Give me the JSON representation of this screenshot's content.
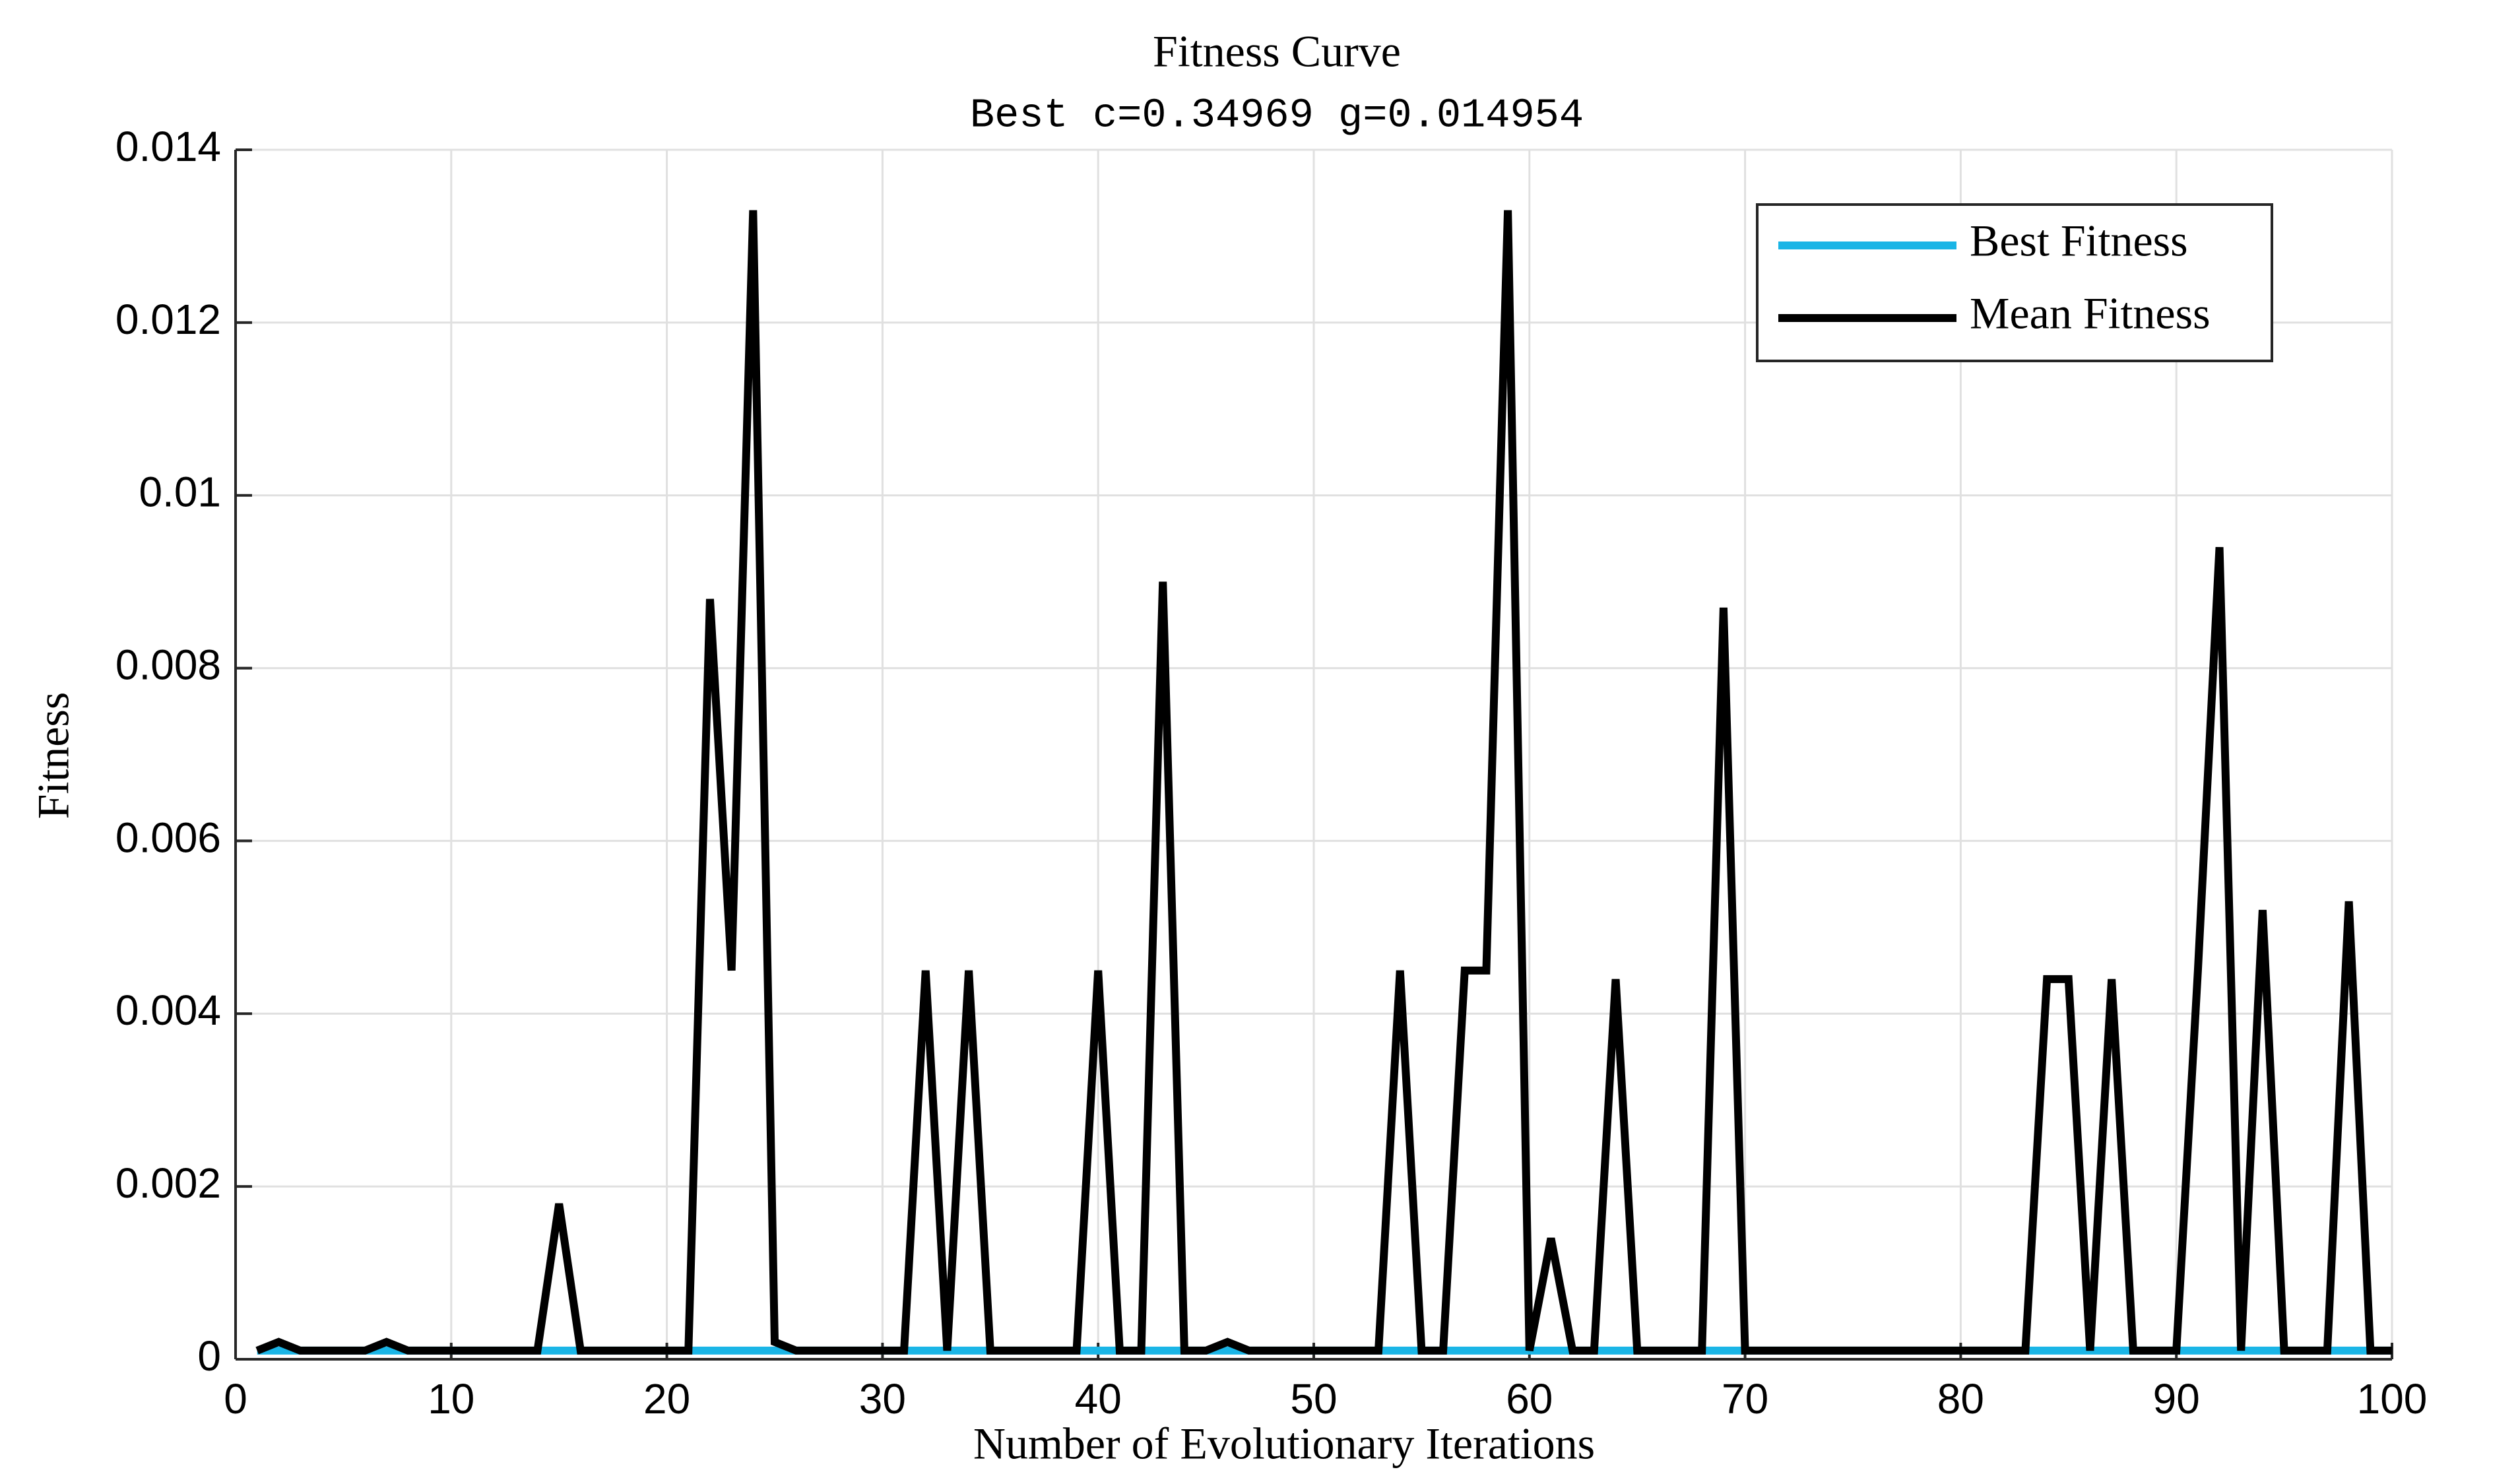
{
  "chart_data": {
    "type": "line",
    "title": "Fitness Curve",
    "subtitle": "Best c=0.34969 g=0.014954",
    "x_label": "Number of Evolutionary Iterations",
    "y_label": "Fitness",
    "x": [
      1,
      2,
      3,
      4,
      5,
      6,
      7,
      8,
      9,
      10,
      11,
      12,
      13,
      14,
      15,
      16,
      17,
      18,
      19,
      20,
      21,
      22,
      23,
      24,
      25,
      26,
      27,
      28,
      29,
      30,
      31,
      32,
      33,
      34,
      35,
      36,
      37,
      38,
      39,
      40,
      41,
      42,
      43,
      44,
      45,
      46,
      47,
      48,
      49,
      50,
      51,
      52,
      53,
      54,
      55,
      56,
      57,
      58,
      59,
      60,
      61,
      62,
      63,
      64,
      65,
      66,
      67,
      68,
      69,
      70,
      71,
      72,
      73,
      74,
      75,
      76,
      77,
      78,
      79,
      80,
      81,
      82,
      83,
      84,
      85,
      86,
      87,
      88,
      89,
      90,
      91,
      92,
      93,
      94,
      95,
      96,
      97,
      98,
      99,
      100
    ],
    "series": [
      {
        "name": "Best Fitness",
        "color": "#1ab5e6",
        "values": [
          0.0001,
          0.0001,
          0.0001,
          0.0001,
          0.0001,
          0.0001,
          0.0001,
          0.0001,
          0.0001,
          0.0001,
          0.0001,
          0.0001,
          0.0001,
          0.0001,
          0.0001,
          0.0001,
          0.0001,
          0.0001,
          0.0001,
          0.0001,
          0.0001,
          0.0001,
          0.0001,
          0.0001,
          0.0001,
          0.0001,
          0.0001,
          0.0001,
          0.0001,
          0.0001,
          0.0001,
          0.0001,
          0.0001,
          0.0001,
          0.0001,
          0.0001,
          0.0001,
          0.0001,
          0.0001,
          0.0001,
          0.0001,
          0.0001,
          0.0001,
          0.0001,
          0.0001,
          0.0001,
          0.0001,
          0.0001,
          0.0001,
          0.0001,
          0.0001,
          0.0001,
          0.0001,
          0.0001,
          0.0001,
          0.0001,
          0.0001,
          0.0001,
          0.0001,
          0.0001,
          0.0001,
          0.0001,
          0.0001,
          0.0001,
          0.0001,
          0.0001,
          0.0001,
          0.0001,
          0.0001,
          0.0001,
          0.0001,
          0.0001,
          0.0001,
          0.0001,
          0.0001,
          0.0001,
          0.0001,
          0.0001,
          0.0001,
          0.0001,
          0.0001,
          0.0001,
          0.0001,
          0.0001,
          0.0001,
          0.0001,
          0.0001,
          0.0001,
          0.0001,
          0.0001,
          0.0001,
          0.0001,
          0.0001,
          0.0001,
          0.0001,
          0.0001,
          0.0001,
          0.0001,
          0.0001,
          0.0001
        ]
      },
      {
        "name": "Mean Fitness",
        "color": "#000000",
        "values": [
          0.0001,
          0.0002,
          0.0001,
          0.0001,
          0.0001,
          0.0001,
          0.0002,
          0.0001,
          0.0001,
          0.0001,
          0.0001,
          0.0001,
          0.0001,
          0.0001,
          0.0018,
          0.0001,
          0.0001,
          0.0001,
          0.0001,
          0.0001,
          0.0001,
          0.0088,
          0.0045,
          0.0133,
          0.0002,
          0.0001,
          0.0001,
          0.0001,
          0.0001,
          0.0001,
          0.0001,
          0.0045,
          0.0001,
          0.0045,
          0.0001,
          0.0001,
          0.0001,
          0.0001,
          0.0001,
          0.0045,
          0.0001,
          0.0001,
          0.009,
          0.0001,
          0.0001,
          0.0002,
          0.0001,
          0.0001,
          0.0001,
          0.0001,
          0.0001,
          0.0001,
          0.0001,
          0.0045,
          0.0001,
          0.0001,
          0.0045,
          0.0045,
          0.0133,
          0.0001,
          0.0014,
          0.0001,
          0.0001,
          0.0044,
          0.0001,
          0.0001,
          0.0001,
          0.0001,
          0.0087,
          0.0001,
          0.0001,
          0.0001,
          0.0001,
          0.0001,
          0.0001,
          0.0001,
          0.0001,
          0.0001,
          0.0001,
          0.0001,
          0.0001,
          0.0001,
          0.0001,
          0.0044,
          0.0044,
          0.0001,
          0.0044,
          0.0001,
          0.0001,
          0.0001,
          0.0045,
          0.0094,
          0.0001,
          0.0052,
          0.0001,
          0.0001,
          0.0001,
          0.0053,
          0.0001,
          0.0001
        ]
      }
    ],
    "xlim": [
      0,
      100
    ],
    "xticks": [
      0,
      10,
      20,
      30,
      40,
      50,
      60,
      70,
      80,
      90,
      100
    ],
    "ylim": [
      0,
      0.014
    ],
    "yticks": [
      0,
      0.002,
      0.004,
      0.006,
      0.008,
      0.01,
      0.012,
      0.014
    ],
    "grid": true,
    "legend": "upper right"
  }
}
